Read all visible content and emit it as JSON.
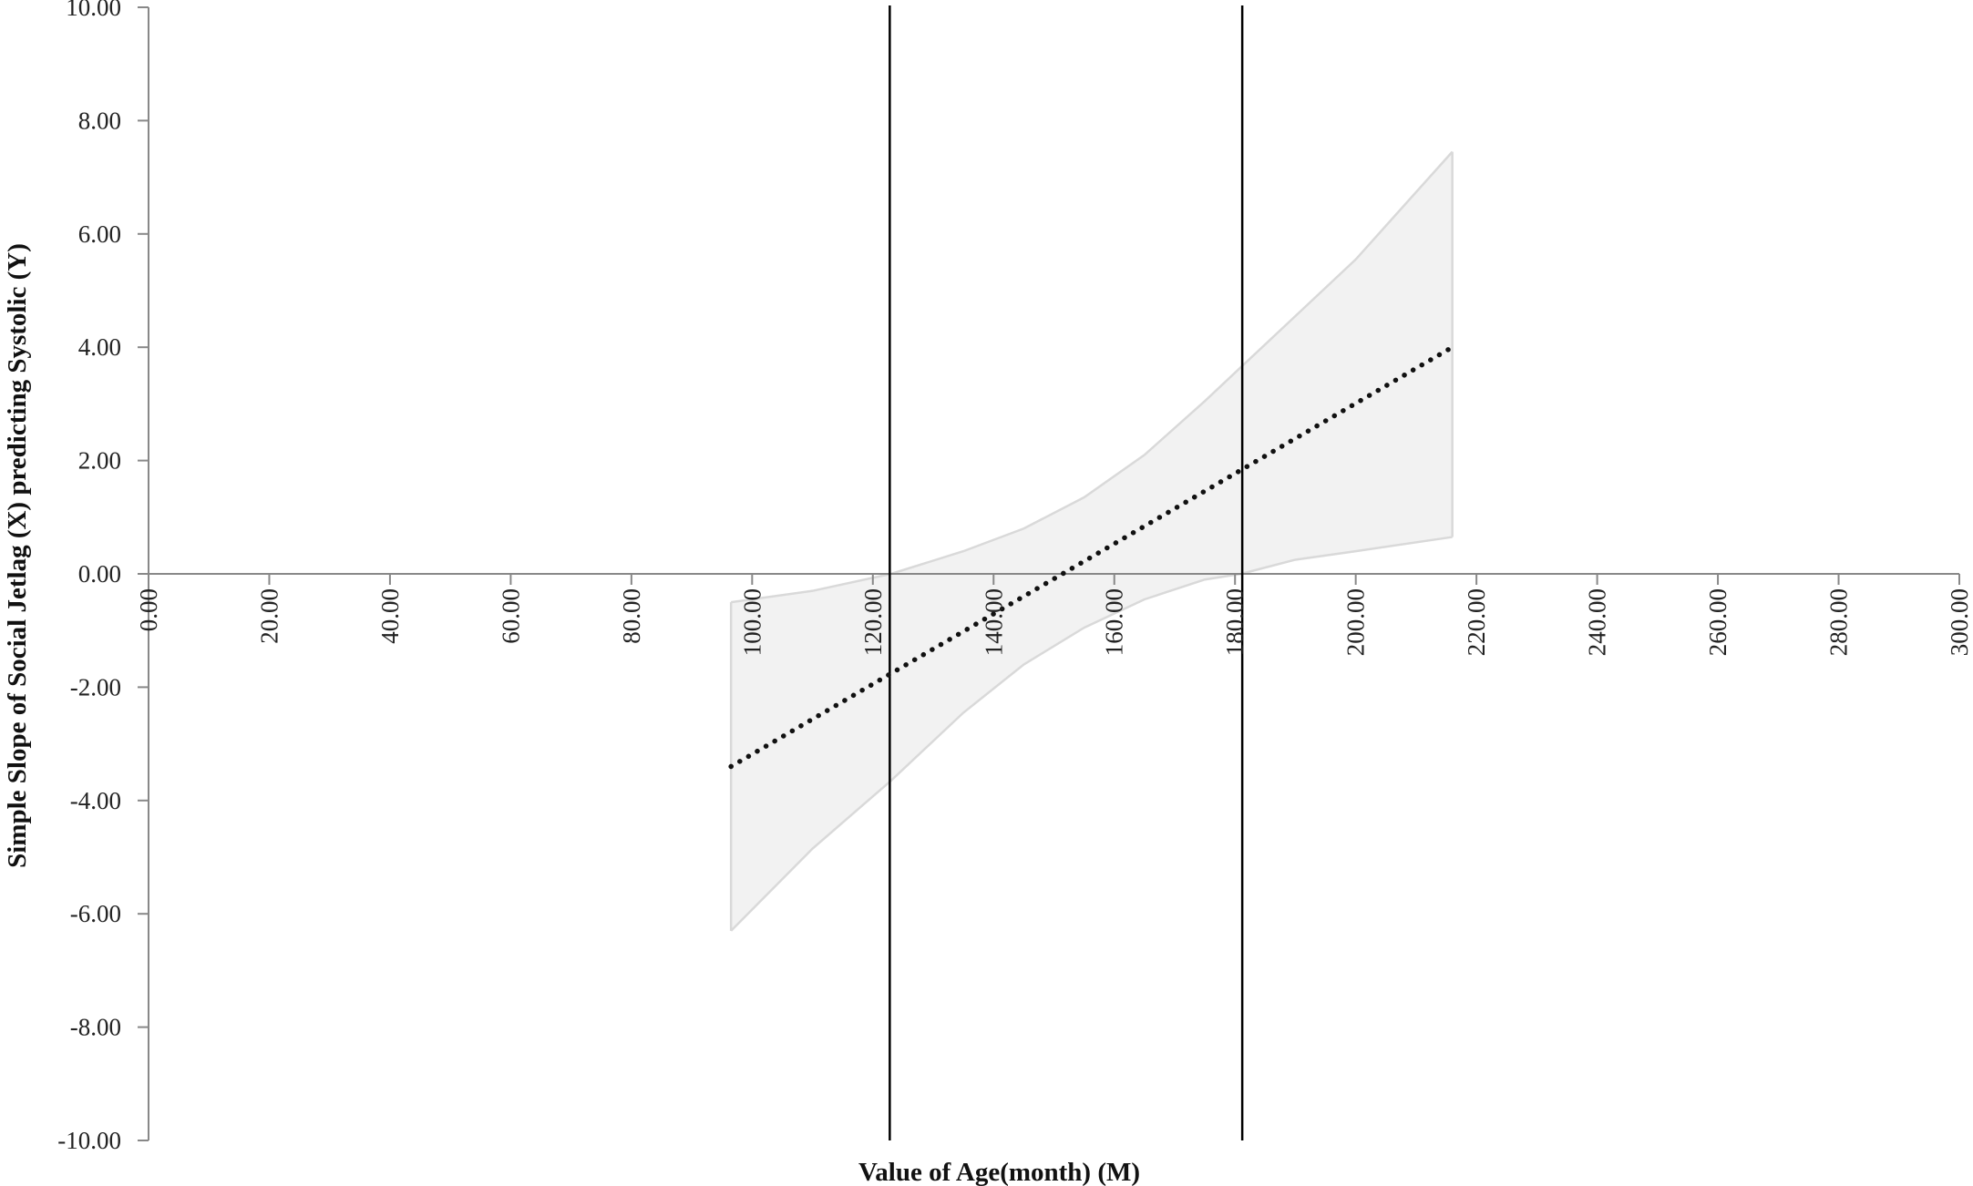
{
  "chart_data": {
    "type": "line",
    "title": "",
    "xlabel": "Value of Age(month) (M)",
    "ylabel": "Simple Slope of Social Jetlag (X) predicting Systolic (Y)",
    "xlim": [
      0,
      300
    ],
    "ylim": [
      -10,
      10
    ],
    "x_ticks": [
      "0.00",
      "20.00",
      "40.00",
      "60.00",
      "80.00",
      "100.00",
      "120.00",
      "140.00",
      "160.00",
      "180.00",
      "200.00",
      "220.00",
      "240.00",
      "260.00",
      "280.00",
      "300.00"
    ],
    "y_ticks": [
      "10.00",
      "8.00",
      "6.00",
      "4.00",
      "2.00",
      "0.00",
      "-2.00",
      "-4.00",
      "-6.00",
      "-8.00",
      "-10.00"
    ],
    "grid": false,
    "legend": "none",
    "series": [
      {
        "style": "dotted",
        "color": "#111111",
        "x": [
          96.5,
          216
        ],
        "y": [
          -3.4,
          4.0
        ]
      }
    ],
    "confidence_band": {
      "color": "#f2f2f2",
      "edge_color": "#d9d9d9",
      "x": [
        96.5,
        110,
        123,
        135,
        145,
        155,
        165,
        175,
        181,
        190,
        200,
        216
      ],
      "upper": [
        -0.5,
        -0.3,
        0.0,
        0.4,
        0.8,
        1.35,
        2.1,
        3.05,
        3.65,
        4.55,
        5.55,
        7.45
      ],
      "lower": [
        -6.3,
        -4.85,
        -3.65,
        -2.45,
        -1.6,
        -0.95,
        -0.45,
        -0.1,
        0.0,
        0.25,
        0.4,
        0.65
      ]
    },
    "vertical_lines": [
      {
        "x": 122.8,
        "color": "#000000"
      },
      {
        "x": 181.2,
        "color": "#000000"
      }
    ]
  }
}
